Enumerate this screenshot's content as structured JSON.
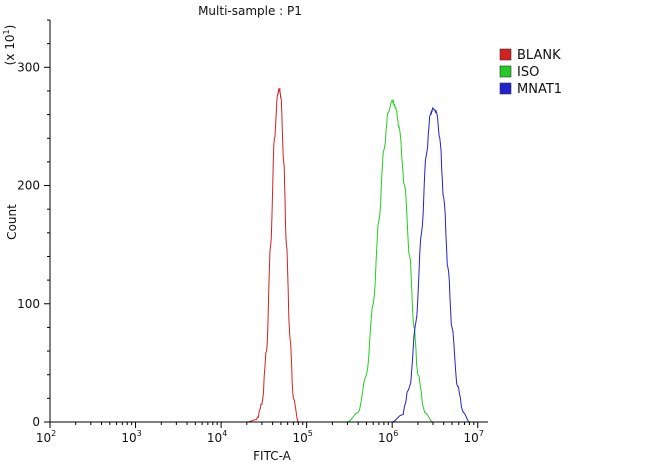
{
  "chart_data": {
    "type": "line",
    "title": "Multi-sample : P1",
    "xlabel": "FITC-A",
    "ylabel": "Count",
    "y_multiplier": "(x 10",
    "y_multiplier_exp": "1",
    "y_multiplier_close": ")",
    "x_scale": "log",
    "xlim": [
      100,
      10000000
    ],
    "ylim": [
      0,
      340
    ],
    "grid": false,
    "legend_position": "top-right",
    "x_ticks": [
      {
        "value": 100,
        "base": "10",
        "exp": "2"
      },
      {
        "value": 1000,
        "base": "10",
        "exp": "3"
      },
      {
        "value": 10000,
        "base": "10",
        "exp": "4"
      },
      {
        "value": 100000,
        "base": "10",
        "exp": "5"
      },
      {
        "value": 1000000,
        "base": "10",
        "exp": "6"
      },
      {
        "value": 10000000,
        "base": "10",
        "exp": "7"
      }
    ],
    "y_ticks": [
      0,
      100,
      200,
      300
    ],
    "series": [
      {
        "name": "BLANK",
        "color": "#d42020",
        "x": [
          20000,
          26000,
          30000,
          34000,
          38000,
          42000,
          46000,
          48000,
          50000,
          54000,
          58000,
          64000,
          70000,
          80000
        ],
        "values": [
          0,
          2,
          15,
          60,
          150,
          240,
          278,
          282,
          275,
          220,
          150,
          70,
          20,
          0
        ]
      },
      {
        "name": "ISO",
        "color": "#22cc22",
        "x": [
          300000,
          400000,
          500000,
          600000,
          700000,
          800000,
          900000,
          1000000,
          1100000,
          1200000,
          1400000,
          1600000,
          1800000,
          2000000,
          2400000,
          3000000
        ],
        "values": [
          0,
          8,
          40,
          100,
          170,
          230,
          262,
          272,
          266,
          250,
          200,
          140,
          80,
          40,
          8,
          0
        ]
      },
      {
        "name": "MNAT1",
        "color": "#2222cc",
        "x": [
          1000000,
          1300000,
          1600000,
          1900000,
          2200000,
          2500000,
          2800000,
          3000000,
          3300000,
          3600000,
          4000000,
          4500000,
          5000000,
          5800000,
          6800000,
          8000000
        ],
        "values": [
          0,
          6,
          30,
          85,
          160,
          225,
          260,
          265,
          262,
          240,
          190,
          130,
          80,
          30,
          8,
          0
        ]
      }
    ]
  }
}
